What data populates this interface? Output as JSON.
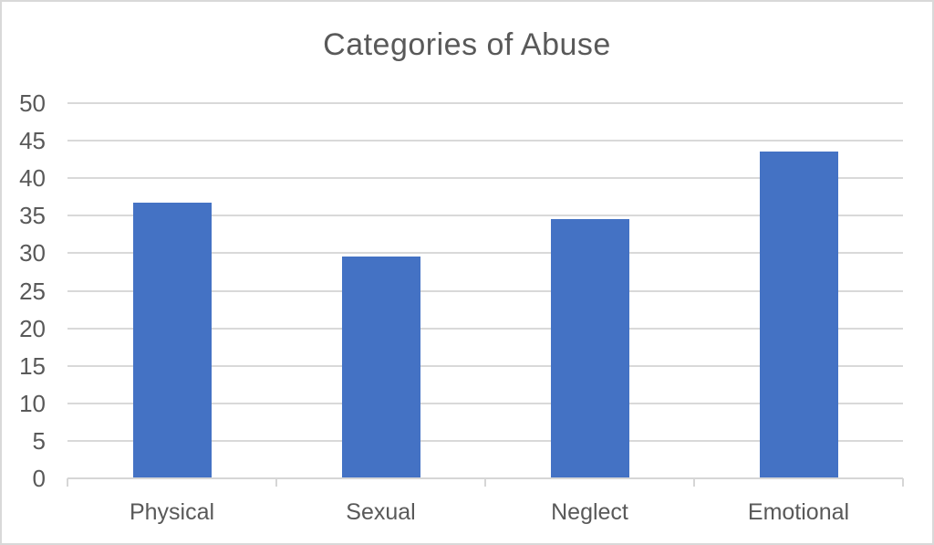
{
  "chart_data": {
    "type": "bar",
    "title": "Categories of Abuse",
    "categories": [
      "Physical",
      "Sexual",
      "Neglect",
      "Emotional"
    ],
    "values": [
      36.7,
      29.6,
      34.5,
      43.5
    ],
    "xlabel": "",
    "ylabel": "",
    "ylim": [
      0,
      50
    ],
    "yticks": [
      0,
      5,
      10,
      15,
      20,
      25,
      30,
      35,
      40,
      45,
      50
    ],
    "grid": "horizontal",
    "legend": "none",
    "bar_color": "#4472C4"
  },
  "colors": {
    "bar": "#4472C4",
    "title_text": "#595959",
    "axis_text": "#595959",
    "gridline": "#D9D9D9",
    "axis_line": "#D6D6D6",
    "frame_border": "#D9D9D9",
    "background": "#FFFFFF"
  }
}
